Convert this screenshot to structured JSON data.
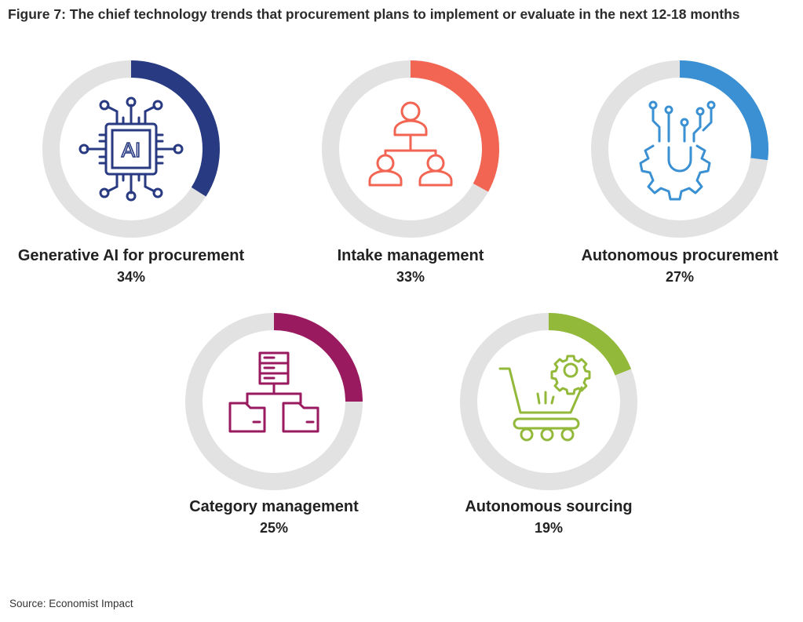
{
  "title": "Figure 7: The chief technology trends that procurement plans to implement or evaluate in the next 12-18 months",
  "source": "Source: Economist Impact",
  "chart_data": {
    "type": "donut",
    "track_color": "#e2e2e2",
    "series": [
      {
        "name": "Generative AI for procurement",
        "value": 34,
        "label": "34%",
        "color": "#283a82",
        "icon": "ai-chip-icon"
      },
      {
        "name": "Intake management",
        "value": 33,
        "label": "33%",
        "color": "#f26553",
        "icon": "org-chart-people-icon"
      },
      {
        "name": "Autonomous procurement",
        "value": 27,
        "label": "27%",
        "color": "#3a90d2",
        "icon": "circuit-gear-icon"
      },
      {
        "name": "Category management",
        "value": 25,
        "label": "25%",
        "color": "#9a1a60",
        "icon": "server-folders-icon"
      },
      {
        "name": "Autonomous sourcing",
        "value": 19,
        "label": "19%",
        "color": "#93b93a",
        "icon": "cart-gear-icon"
      }
    ]
  }
}
